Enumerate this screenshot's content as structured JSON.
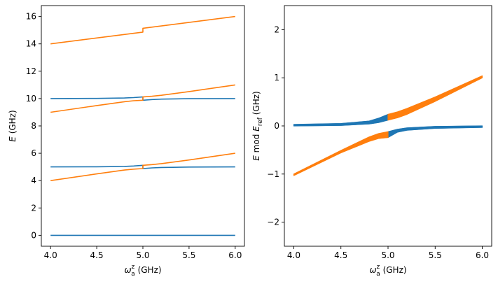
{
  "colors": {
    "blue": "#1f77b4",
    "orange": "#ff7f0e",
    "axis": "#000000"
  },
  "chart_data": [
    {
      "type": "line",
      "xlabel": "ω_a^z (GHz)",
      "ylabel": "E (GHz)",
      "xlim": [
        3.9,
        6.1
      ],
      "ylim": [
        -0.8,
        16.8
      ],
      "xticks": [
        "4.0",
        "4.5",
        "5.0",
        "5.5",
        "6.0"
      ],
      "yticks": [
        "0",
        "2",
        "4",
        "6",
        "8",
        "10",
        "12",
        "14",
        "16"
      ],
      "grid": false,
      "series": [
        {
          "color": "blue",
          "x": [
            4.0,
            6.0
          ],
          "y": [
            0.0,
            0.0
          ]
        },
        {
          "color": "blue",
          "x": [
            4.0,
            4.5,
            4.8,
            4.9,
            5.0,
            5.0,
            5.1,
            5.2,
            5.5,
            6.0
          ],
          "y": [
            5.0,
            5.01,
            5.04,
            5.07,
            5.12,
            4.88,
            4.93,
            4.96,
            4.99,
            5.0
          ]
        },
        {
          "color": "blue",
          "x": [
            4.0,
            4.5,
            4.8,
            4.9,
            5.0,
            5.0,
            5.1,
            5.2,
            5.5,
            6.0
          ],
          "y": [
            10.0,
            10.01,
            10.04,
            10.07,
            10.12,
            9.88,
            9.93,
            9.96,
            9.99,
            10.0
          ]
        },
        {
          "color": "orange",
          "x": [
            4.0,
            4.5,
            4.8,
            4.9,
            5.0,
            5.0,
            5.1,
            5.2,
            5.5,
            6.0
          ],
          "y": [
            4.0,
            4.49,
            4.77,
            4.84,
            4.88,
            5.12,
            5.17,
            5.24,
            5.51,
            6.0
          ]
        },
        {
          "color": "orange",
          "x": [
            4.0,
            4.5,
            4.8,
            4.9,
            5.0,
            5.0,
            5.1,
            5.2,
            5.5,
            6.0
          ],
          "y": [
            9.0,
            9.49,
            9.77,
            9.84,
            9.88,
            10.12,
            10.17,
            10.24,
            10.51,
            11.0
          ]
        },
        {
          "color": "orange",
          "x": [
            4.0,
            5.0,
            5.0,
            6.0
          ],
          "y": [
            14.0,
            14.86,
            15.14,
            16.0
          ]
        }
      ]
    },
    {
      "type": "line",
      "xlabel": "ω_a^z (GHz)",
      "ylabel": "E mod E_ref (GHz)",
      "xlim": [
        3.9,
        6.1
      ],
      "ylim": [
        -2.5,
        2.5
      ],
      "xticks": [
        "4.0",
        "4.5",
        "5.0",
        "5.5",
        "6.0"
      ],
      "yticks": [
        "−2",
        "−1",
        "0",
        "1",
        "2"
      ],
      "grid": false,
      "bands": [
        {
          "color": "blue",
          "x": [
            4.0,
            4.5,
            4.8,
            4.9,
            5.0
          ],
          "low": [
            0.0,
            0.01,
            0.04,
            0.07,
            0.12
          ],
          "high": [
            0.03,
            0.05,
            0.1,
            0.16,
            0.24
          ]
        },
        {
          "color": "blue",
          "x": [
            5.0,
            5.1,
            5.2,
            5.5,
            6.0
          ],
          "low": [
            -0.24,
            -0.13,
            -0.09,
            -0.05,
            -0.03
          ],
          "high": [
            -0.12,
            -0.07,
            -0.04,
            -0.01,
            0.0
          ]
        },
        {
          "color": "orange",
          "x": [
            4.0,
            4.5,
            4.8,
            4.9,
            5.0
          ],
          "low": [
            -1.03,
            -0.56,
            -0.32,
            -0.26,
            -0.24
          ],
          "high": [
            -1.0,
            -0.51,
            -0.23,
            -0.16,
            -0.12
          ]
        },
        {
          "color": "orange",
          "x": [
            5.0,
            5.1,
            5.2,
            5.5,
            6.0
          ],
          "low": [
            0.12,
            0.17,
            0.24,
            0.51,
            1.0
          ],
          "high": [
            0.24,
            0.29,
            0.36,
            0.6,
            1.04
          ]
        }
      ]
    }
  ]
}
